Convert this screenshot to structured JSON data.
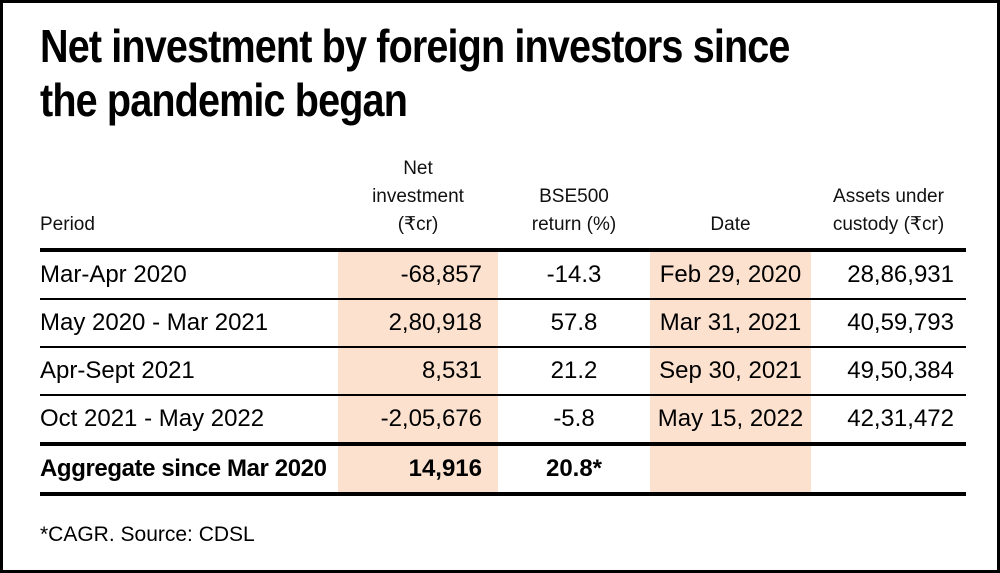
{
  "chart_data": {
    "type": "table",
    "title": "Net investment by foreign investors since the pandemic began",
    "columns": [
      "Period",
      "Net investment (₹cr)",
      "BSE500 return (%)",
      "Date",
      "Assets under custody (₹cr)"
    ],
    "rows": [
      [
        "Mar-Apr 2020",
        "-68,857",
        "-14.3",
        "Feb 29, 2020",
        "28,86,931"
      ],
      [
        "May 2020 - Mar 2021",
        "2,80,918",
        "57.8",
        "Mar 31, 2021",
        "40,59,793"
      ],
      [
        "Apr-Sept 2021",
        "8,531",
        "21.2",
        "Sep 30, 2021",
        "49,50,384"
      ],
      [
        "Oct 2021 - May 2022",
        "-2,05,676",
        "-5.8",
        "May 15, 2022",
        "42,31,472"
      ],
      [
        "Aggregate since Mar 2020",
        "14,916",
        "20.8*",
        "",
        ""
      ]
    ],
    "footnote": "*CAGR. Source: CDSL",
    "highlighted_columns": [
      "Net investment (₹cr)",
      "Date"
    ],
    "highlight_color": "#fce1cf",
    "layout": "highlighted columns have light peach background; thick rules under header and around aggregate row; thin rules between data rows"
  },
  "ui": {
    "title_display": "Net investment by foreign investors since\nthe pandemic began",
    "headers": {
      "period": "Period",
      "net_investment": "Net\ninvestment\n(₹cr)",
      "bse500": "BSE500\nreturn (%)",
      "date": "Date",
      "assets": "Assets under\ncustody (₹cr)"
    },
    "footnote": "*CAGR. Source: CDSL"
  },
  "colors": {
    "highlight": "#fce1cf",
    "text": "#000000",
    "border": "#000000",
    "background": "#ffffff"
  }
}
